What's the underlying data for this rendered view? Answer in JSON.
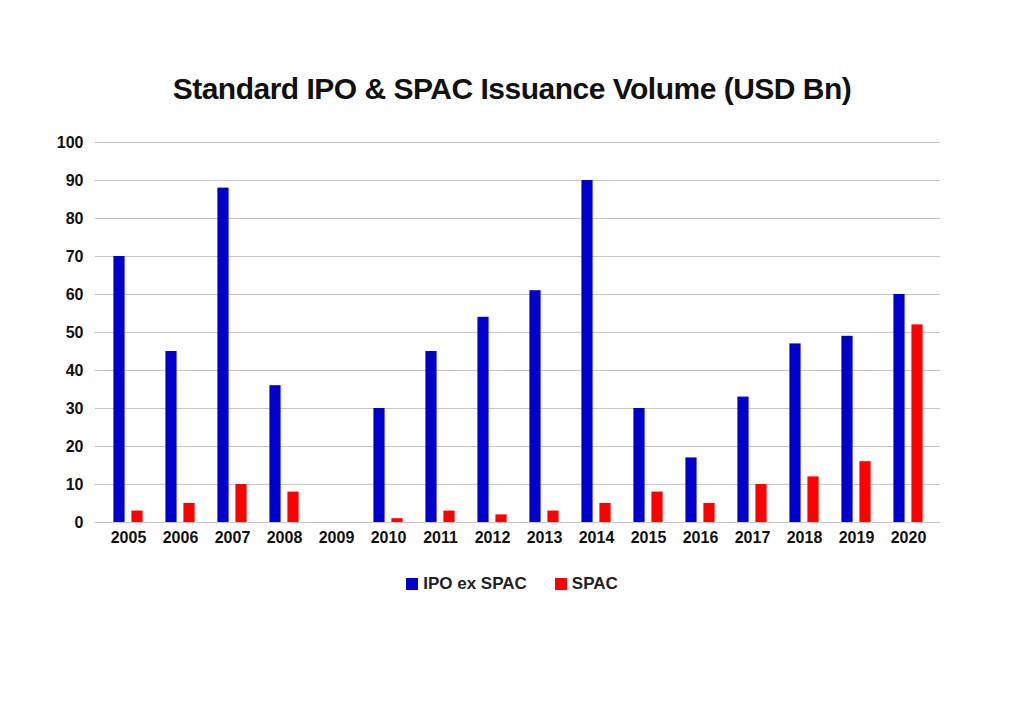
{
  "chart_data": {
    "type": "bar",
    "title": "Standard IPO & SPAC Issuance Volume (USD Bn)",
    "categories": [
      "2005",
      "2006",
      "2007",
      "2008",
      "2009",
      "2010",
      "2011",
      "2012",
      "2013",
      "2014",
      "2015",
      "2016",
      "2017",
      "2018",
      "2019",
      "2020"
    ],
    "series": [
      {
        "name": "IPO ex SPAC",
        "color": "#0000cc",
        "values": [
          70,
          45,
          88,
          36,
          0,
          30,
          45,
          54,
          61,
          90,
          30,
          17,
          33,
          47,
          49,
          60
        ]
      },
      {
        "name": "SPAC",
        "color": "#ff0000",
        "values": [
          3,
          5,
          10,
          8,
          0,
          1,
          3,
          2,
          3,
          5,
          8,
          5,
          10,
          12,
          16,
          52
        ]
      }
    ],
    "ylim": [
      0,
      100
    ],
    "yticks": [
      0,
      10,
      20,
      30,
      40,
      50,
      60,
      70,
      80,
      90,
      100
    ],
    "grid": true,
    "legend": "bottom"
  }
}
